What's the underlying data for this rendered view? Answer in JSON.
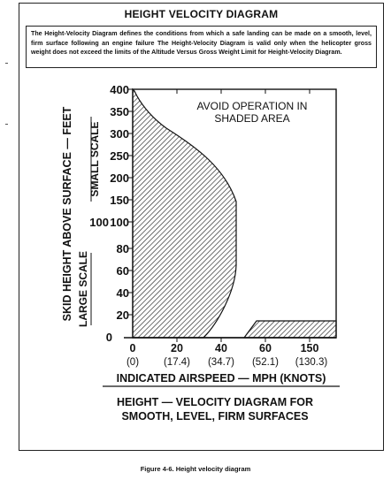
{
  "title": "HEIGHT VELOCITY DIAGRAM",
  "description": "The Height-Velocity Diagram defines the conditions from which a safe landing can be made on a smooth, level, firm surface following an engine failure  The Height-Velocity Diagram is valid only when the helicopter gross weight does not exceed the limits of the Altitude Versus Gross Weight Limit for Height-Velocity Diagram.",
  "diagram": {
    "y_axis_label": "SKID HEIGHT ABOVE SURFACE — FEET",
    "small_scale_label": "SMALL SCALE",
    "large_scale_label": "LARGE SCALE",
    "small_scale_ticks": [
      "400",
      "350",
      "300",
      "250",
      "200",
      "150",
      "100"
    ],
    "large_scale_ticks": [
      "100",
      "80",
      "60",
      "40",
      "20",
      "0"
    ],
    "x_ticks": [
      {
        "mph": "0",
        "knots": "(0)"
      },
      {
        "mph": "20",
        "knots": "(17.4)"
      },
      {
        "mph": "40",
        "knots": "(34.7)"
      },
      {
        "mph": "60",
        "knots": "(52.1)"
      },
      {
        "mph": "150",
        "knots": "(130.3)"
      }
    ],
    "x_axis_label": "INDICATED AIRSPEED — MPH (KNOTS)",
    "note_line1": "AVOID OPERATION IN",
    "note_line2": "SHADED AREA",
    "subtitle_line1": "HEIGHT — VELOCITY DIAGRAM FOR",
    "subtitle_line2": "SMOOTH, LEVEL, FIRM SURFACES",
    "accent": "#1a1a1a"
  },
  "caption": "Figure 4-6.  Height velocity diagram"
}
